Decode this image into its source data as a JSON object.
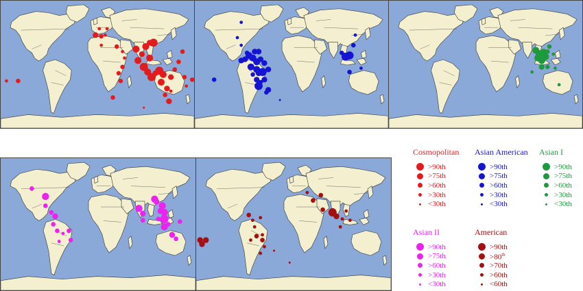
{
  "colors": {
    "ocean": "#8aa9d8",
    "land": "#f3efcf",
    "border": "#333333",
    "cosmopolitan": "#e41a1c",
    "asian_american": "#1414d2",
    "asian_i": "#1d9a3c",
    "asian_ii": "#ee22ee",
    "american": "#a50f0f"
  },
  "maps": [
    {
      "id": "cosmopolitan",
      "color_key": "cosmopolitan",
      "points": [
        [
          0.03,
          0.63,
          2
        ],
        [
          0.09,
          0.63,
          3
        ],
        [
          0.49,
          0.27,
          4
        ],
        [
          0.52,
          0.28,
          3
        ],
        [
          0.54,
          0.27,
          2
        ],
        [
          0.52,
          0.35,
          2
        ],
        [
          0.6,
          0.36,
          3
        ],
        [
          0.63,
          0.4,
          2
        ],
        [
          0.64,
          0.45,
          2
        ],
        [
          0.63,
          0.52,
          3
        ],
        [
          0.61,
          0.57,
          3
        ],
        [
          0.62,
          0.63,
          3
        ],
        [
          0.58,
          0.76,
          3
        ],
        [
          0.7,
          0.38,
          5
        ],
        [
          0.71,
          0.47,
          5
        ],
        [
          0.73,
          0.42,
          4
        ],
        [
          0.75,
          0.36,
          5
        ],
        [
          0.77,
          0.33,
          4
        ],
        [
          0.79,
          0.33,
          6
        ],
        [
          0.77,
          0.45,
          5
        ],
        [
          0.74,
          0.52,
          6
        ],
        [
          0.76,
          0.56,
          5
        ],
        [
          0.78,
          0.6,
          6
        ],
        [
          0.8,
          0.57,
          4
        ],
        [
          0.82,
          0.55,
          6
        ],
        [
          0.84,
          0.58,
          5
        ],
        [
          0.83,
          0.64,
          5
        ],
        [
          0.86,
          0.69,
          4
        ],
        [
          0.88,
          0.6,
          4
        ],
        [
          0.9,
          0.54,
          3
        ],
        [
          0.92,
          0.48,
          3
        ],
        [
          0.94,
          0.4,
          3
        ],
        [
          0.95,
          0.6,
          3
        ],
        [
          0.96,
          0.67,
          2
        ],
        [
          0.85,
          0.74,
          3
        ],
        [
          0.87,
          0.79,
          4
        ],
        [
          0.88,
          0.71,
          2
        ],
        [
          0.99,
          0.62,
          3
        ],
        [
          0.74,
          0.84,
          1
        ],
        [
          0.51,
          0.22,
          2
        ],
        [
          0.55,
          0.22,
          2
        ]
      ]
    },
    {
      "id": "asian_american",
      "color_key": "asian_american",
      "points": [
        [
          0.1,
          0.62,
          3
        ],
        [
          0.22,
          0.29,
          2
        ],
        [
          0.24,
          0.35,
          2
        ],
        [
          0.27,
          0.41,
          3
        ],
        [
          0.28,
          0.43,
          5
        ],
        [
          0.24,
          0.47,
          4
        ],
        [
          0.26,
          0.46,
          4
        ],
        [
          0.3,
          0.45,
          5
        ],
        [
          0.31,
          0.4,
          4
        ],
        [
          0.33,
          0.4,
          4
        ],
        [
          0.32,
          0.48,
          5
        ],
        [
          0.34,
          0.46,
          4
        ],
        [
          0.29,
          0.52,
          5
        ],
        [
          0.32,
          0.54,
          5
        ],
        [
          0.33,
          0.57,
          4
        ],
        [
          0.35,
          0.56,
          6
        ],
        [
          0.36,
          0.49,
          4
        ],
        [
          0.3,
          0.58,
          3
        ],
        [
          0.36,
          0.62,
          4
        ],
        [
          0.38,
          0.54,
          4
        ],
        [
          0.34,
          0.64,
          3
        ],
        [
          0.32,
          0.62,
          4
        ],
        [
          0.33,
          0.67,
          6
        ],
        [
          0.37,
          0.72,
          3
        ],
        [
          0.38,
          0.7,
          4
        ],
        [
          0.44,
          0.78,
          1
        ],
        [
          0.24,
          0.17,
          2
        ],
        [
          0.76,
          0.41,
          3
        ],
        [
          0.8,
          0.43,
          6
        ],
        [
          0.78,
          0.44,
          6
        ],
        [
          0.82,
          0.35,
          3
        ],
        [
          0.8,
          0.56,
          3
        ],
        [
          0.83,
          0.27,
          2
        ],
        [
          0.86,
          0.53,
          2
        ]
      ]
    },
    {
      "id": "asian_i",
      "color_key": "asian_i",
      "points": [
        [
          0.76,
          0.39,
          5
        ],
        [
          0.78,
          0.42,
          6
        ],
        [
          0.8,
          0.41,
          6
        ],
        [
          0.77,
          0.45,
          5
        ],
        [
          0.79,
          0.47,
          5
        ],
        [
          0.81,
          0.44,
          5
        ],
        [
          0.82,
          0.4,
          3
        ],
        [
          0.83,
          0.36,
          3
        ],
        [
          0.79,
          0.52,
          4
        ],
        [
          0.82,
          0.52,
          3
        ],
        [
          0.85,
          0.42,
          2
        ],
        [
          0.88,
          0.66,
          2
        ],
        [
          0.74,
          0.56,
          2
        ],
        [
          0.86,
          0.53,
          2
        ]
      ]
    },
    {
      "id": "asian_ii",
      "color_key": "asian_ii",
      "points": [
        [
          0.16,
          0.23,
          3
        ],
        [
          0.23,
          0.29,
          5
        ],
        [
          0.23,
          0.36,
          3
        ],
        [
          0.26,
          0.41,
          3
        ],
        [
          0.28,
          0.44,
          4
        ],
        [
          0.27,
          0.5,
          3
        ],
        [
          0.29,
          0.55,
          3
        ],
        [
          0.32,
          0.57,
          2
        ],
        [
          0.35,
          0.55,
          3
        ],
        [
          0.3,
          0.63,
          2
        ],
        [
          0.36,
          0.62,
          3
        ],
        [
          0.71,
          0.38,
          5
        ],
        [
          0.73,
          0.42,
          4
        ],
        [
          0.79,
          0.31,
          5
        ],
        [
          0.8,
          0.33,
          4
        ],
        [
          0.83,
          0.36,
          5
        ],
        [
          0.82,
          0.4,
          4
        ],
        [
          0.84,
          0.41,
          5
        ],
        [
          0.84,
          0.46,
          6
        ],
        [
          0.84,
          0.52,
          5
        ],
        [
          0.86,
          0.5,
          3
        ],
        [
          0.88,
          0.58,
          4
        ],
        [
          0.9,
          0.61,
          3
        ],
        [
          0.73,
          0.47,
          3
        ],
        [
          0.92,
          0.48,
          3
        ],
        [
          0.81,
          0.46,
          3
        ]
      ]
    },
    {
      "id": "american",
      "color_key": "american",
      "points": [
        [
          0.03,
          0.65,
          4
        ],
        [
          0.02,
          0.62,
          4
        ],
        [
          0.05,
          0.62,
          4
        ],
        [
          0.27,
          0.43,
          3
        ],
        [
          0.29,
          0.47,
          2
        ],
        [
          0.33,
          0.45,
          2
        ],
        [
          0.3,
          0.52,
          2
        ],
        [
          0.31,
          0.59,
          3
        ],
        [
          0.34,
          0.62,
          3
        ],
        [
          0.35,
          0.67,
          2
        ],
        [
          0.33,
          0.72,
          2
        ],
        [
          0.28,
          0.62,
          2
        ],
        [
          0.34,
          0.58,
          2
        ],
        [
          0.57,
          0.26,
          2
        ],
        [
          0.6,
          0.32,
          3
        ],
        [
          0.64,
          0.28,
          3
        ],
        [
          0.65,
          0.39,
          3
        ],
        [
          0.7,
          0.41,
          6
        ],
        [
          0.72,
          0.44,
          4
        ],
        [
          0.75,
          0.46,
          2
        ],
        [
          0.79,
          0.47,
          2
        ],
        [
          0.77,
          0.4,
          2
        ],
        [
          0.74,
          0.52,
          2
        ],
        [
          0.4,
          0.7,
          1
        ],
        [
          0.48,
          0.79,
          1
        ]
      ]
    }
  ],
  "legends": [
    {
      "title": "Cosmopolitan",
      "color_key": "cosmopolitan",
      "items": [
        {
          "label": ">90th"
        },
        {
          "label": ">75th"
        },
        {
          "label": ">60th"
        },
        {
          "label": ">30th"
        },
        {
          "label": "<30th"
        }
      ]
    },
    {
      "title": "Asian American",
      "color_key": "asian_american",
      "items": [
        {
          "label": ">90th"
        },
        {
          "label": ">75th"
        },
        {
          "label": ">60th"
        },
        {
          "label": ">30th"
        },
        {
          "label": "<30th"
        }
      ]
    },
    {
      "title": "Asian I",
      "color_key": "asian_i",
      "items": [
        {
          "label": ">90th"
        },
        {
          "label": ">75th"
        },
        {
          "label": ">60th"
        },
        {
          "label": ">30th"
        },
        {
          "label": "<30th"
        }
      ]
    },
    {
      "title": "Asian II",
      "color_key": "asian_ii",
      "items": [
        {
          "label": ">90th"
        },
        {
          "label": ">75th"
        },
        {
          "label": ">60th"
        },
        {
          "label": ">30th"
        },
        {
          "label": "<30th"
        }
      ]
    },
    {
      "title": "American",
      "color_key": "american",
      "items": [
        {
          "label": ">90th"
        },
        {
          "label": ">80",
          "sup": "th"
        },
        {
          "label": ">70th"
        },
        {
          "label": ">60th"
        },
        {
          "label": "<60th"
        }
      ]
    }
  ]
}
